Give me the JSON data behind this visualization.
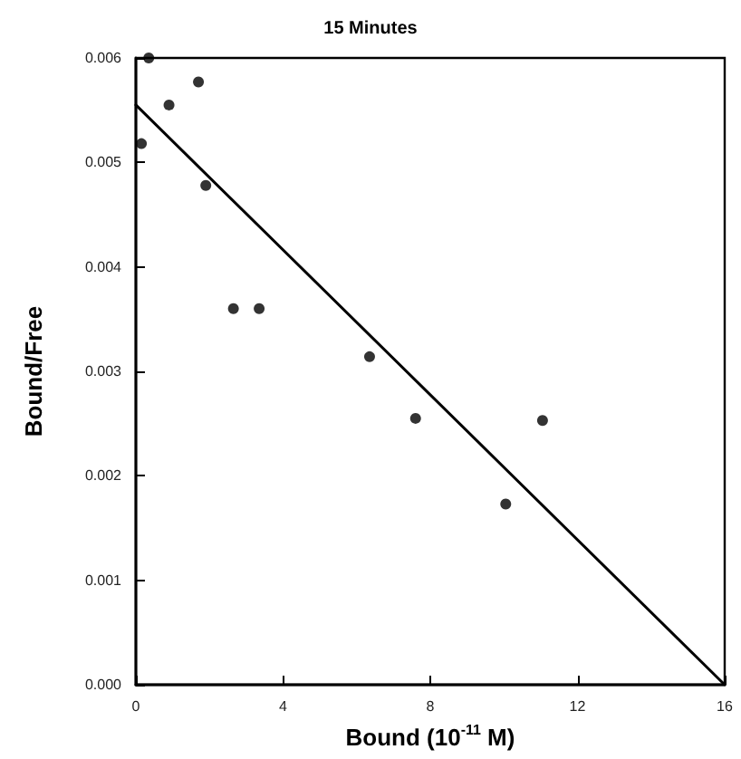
{
  "chart_data": {
    "type": "scatter",
    "title": "15 Minutes",
    "xlabel": "Bound (10$^{-11}$ M)",
    "ylabel": "Bound/Free",
    "xlim": [
      0,
      16
    ],
    "xticks": [
      0,
      4,
      8,
      12,
      16
    ],
    "ylim": [
      0,
      0.006
    ],
    "yticks": [
      {
        "value": 0,
        "label": "0.000"
      },
      {
        "value": 0.001,
        "label": "0.001"
      },
      {
        "value": 0.002,
        "label": "0.002"
      },
      {
        "value": 0.003,
        "label": "0.003"
      },
      {
        "value": 0.004,
        "label": "0.004"
      },
      {
        "value": 0.005,
        "label": "0.005"
      },
      {
        "value": 0.006,
        "label": "0.006"
      }
    ],
    "grid": false,
    "marker": "circle",
    "series": [
      {
        "type": "scatter",
        "color": "#000000",
        "x": [
          0.35,
          1.7,
          0.9,
          0.15,
          1.9,
          2.65,
          3.35,
          6.35,
          7.6,
          10.05,
          11.05
        ],
        "values": [
          0.006,
          0.00577,
          0.00555,
          0.00518,
          0.00478,
          0.0036,
          0.0036,
          0.00314,
          0.00255,
          0.00173,
          0.00253
        ]
      },
      {
        "type": "line",
        "color": "#000000",
        "line_style": "solid",
        "marker": "none",
        "x": [
          0,
          16
        ],
        "values": [
          0.00555,
          0
        ]
      }
    ]
  }
}
